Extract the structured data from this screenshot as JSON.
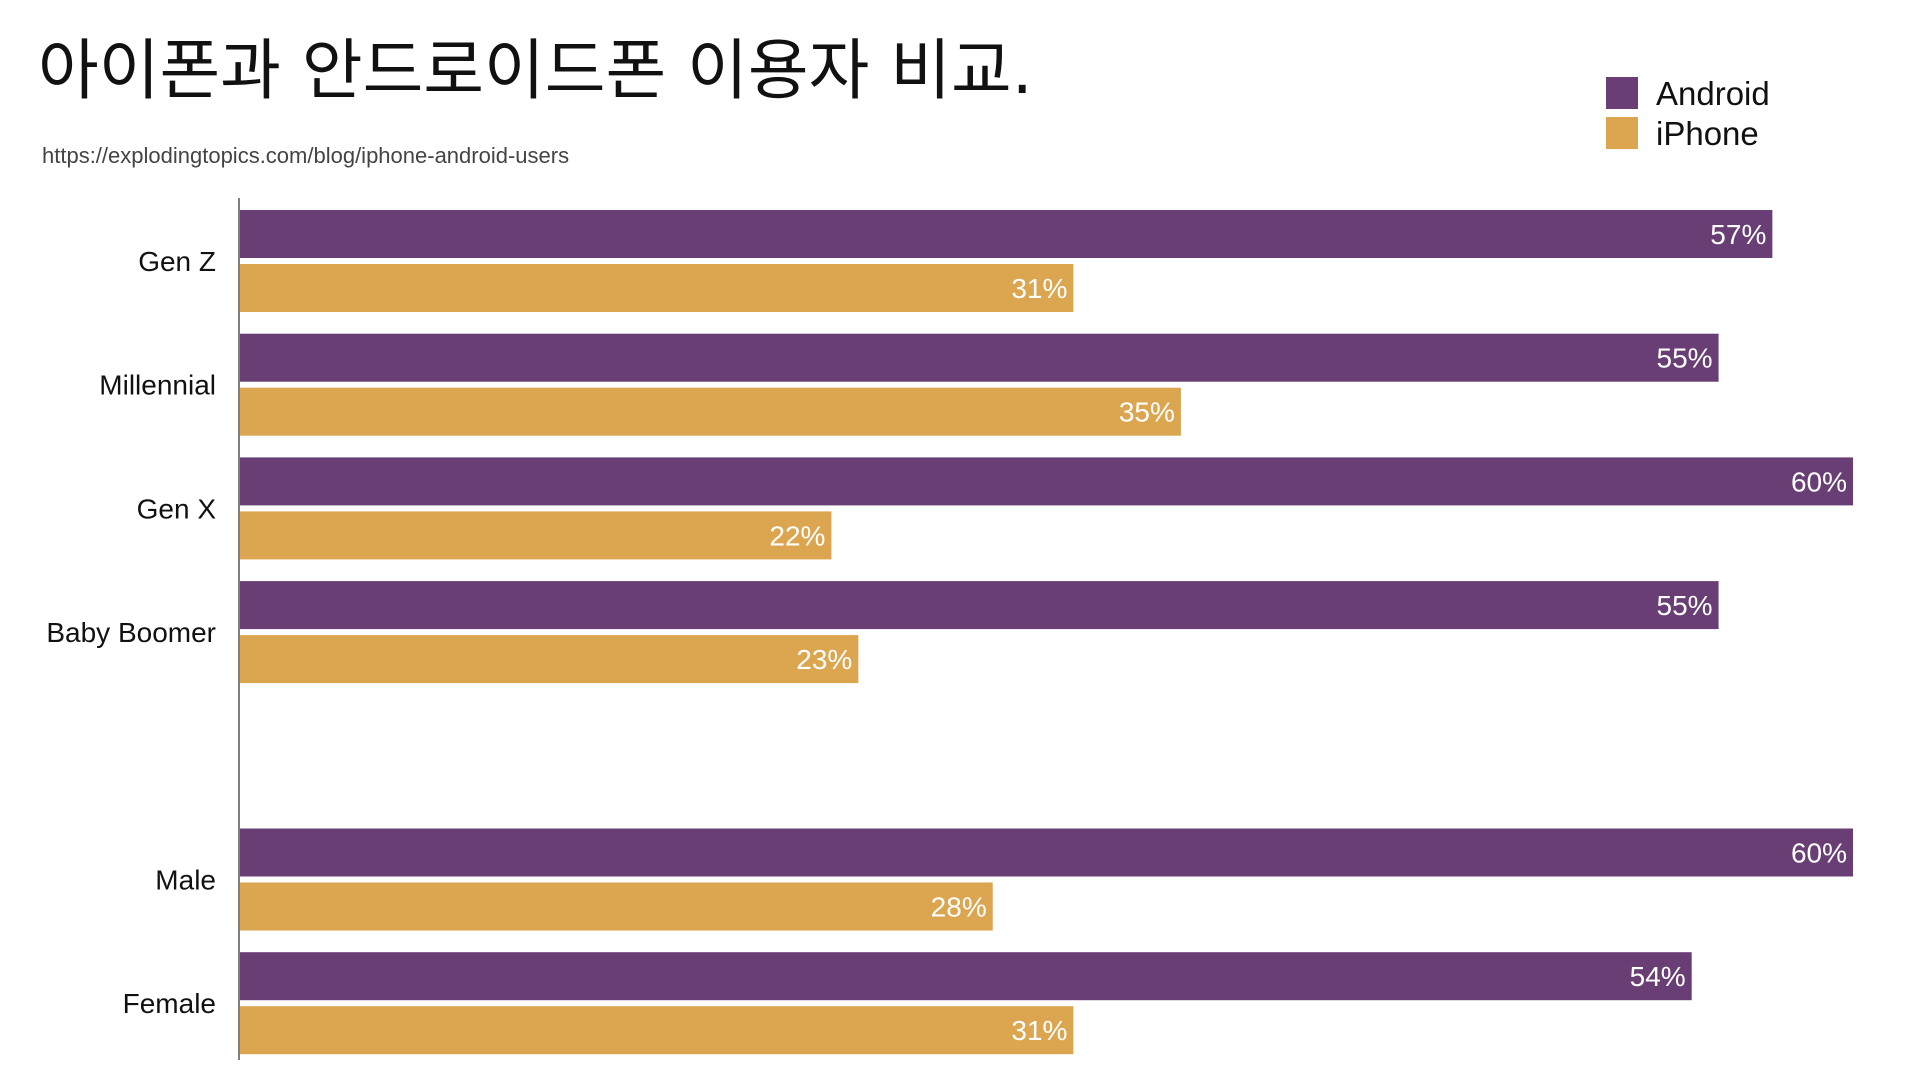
{
  "chart_data": {
    "type": "bar",
    "orientation": "horizontal",
    "title": "아이폰과 안드로이드폰 이용자 비교.",
    "source": "https://explodingtopics.com/blog/iphone-android-users",
    "categories": [
      "Gen Z",
      "Millennial",
      "Gen X",
      "Baby Boomer",
      "",
      "Male",
      "Female"
    ],
    "series": [
      {
        "name": "Android",
        "color": "#683E74",
        "values": [
          57,
          55,
          60,
          55,
          null,
          60,
          54
        ],
        "labels": [
          "57%",
          "55%",
          "60%",
          "55%",
          "",
          "60%",
          "54%"
        ]
      },
      {
        "name": "iPhone",
        "color": "#DCA54F",
        "values": [
          31,
          35,
          22,
          23,
          null,
          28,
          31
        ],
        "labels": [
          "31%",
          "35%",
          "22%",
          "23%",
          "",
          "28%",
          "31%"
        ]
      }
    ],
    "xlim": [
      0,
      60
    ],
    "grid": false,
    "legend_position": "top-right",
    "data_labels": "inside-end"
  }
}
